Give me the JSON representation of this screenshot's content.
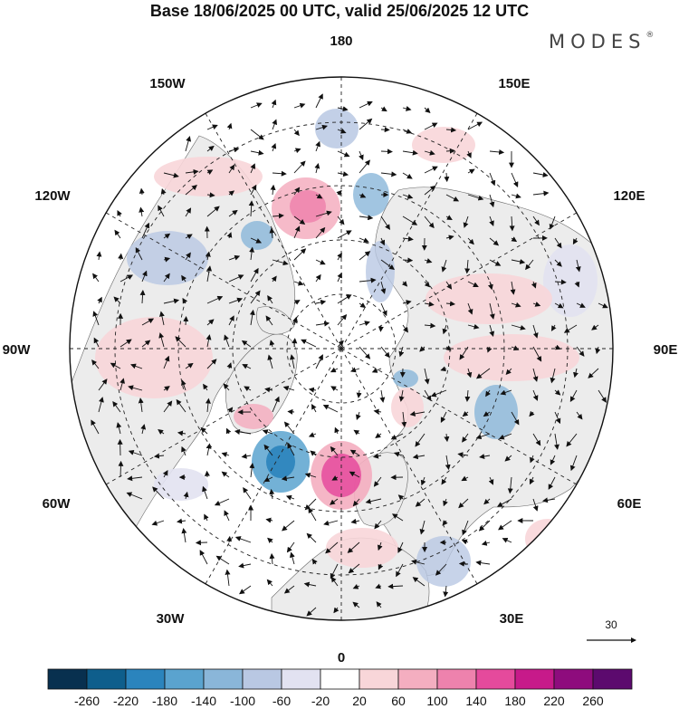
{
  "title": "Base 18/06/2025 00 UTC, valid 25/06/2025 12 UTC",
  "logo": "MODES",
  "logo_mark": "®",
  "longitude_labels": [
    "180",
    "150E",
    "120E",
    "90E",
    "60E",
    "30E",
    "0",
    "30W",
    "60W",
    "90W",
    "120W",
    "150W"
  ],
  "reference_vector": {
    "value": "30"
  },
  "colorbar": {
    "ticks": [
      "-260",
      "-220",
      "-180",
      "-140",
      "-100",
      "-60",
      "-20",
      "20",
      "60",
      "100",
      "140",
      "180",
      "220",
      "260"
    ],
    "colors": [
      "#08304f",
      "#0e5e8c",
      "#2b84bd",
      "#5aa3cf",
      "#8ab6d9",
      "#b9c8e3",
      "#e2e2f1",
      "#ffffff",
      "#f8d6d9",
      "#f4aec0",
      "#ee82ad",
      "#e54a9c",
      "#c71a8a",
      "#8e0c7d",
      "#5c0a6e"
    ]
  },
  "colors": {
    "land": "#ececec",
    "ocean": "#ffffff",
    "grid": "#222222"
  }
}
